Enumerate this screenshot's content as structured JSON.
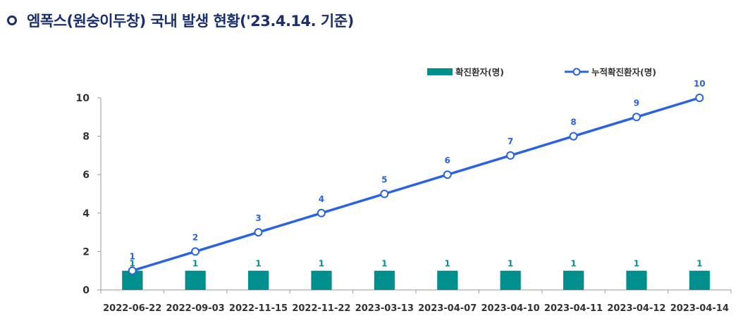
{
  "header": {
    "title": "엠폭스(원숭이두창) 국내 발생 현황('23.4.14. 기준)"
  },
  "colors": {
    "bar": "#008f8c",
    "line": "#2a63e0",
    "title": "#1a2f6e",
    "bar_label": "#009090",
    "line_label": "#2a63e0"
  },
  "chart_data": {
    "type": "bar",
    "categories": [
      "2022-06-22",
      "2022-09-03",
      "2022-11-15",
      "2022-11-22",
      "2023-03-13",
      "2023-04-07",
      "2023-04-10",
      "2023-04-11",
      "2023-04-12",
      "2023-04-14"
    ],
    "series": [
      {
        "name": "확진환자(명)",
        "type": "bar",
        "values": [
          1,
          1,
          1,
          1,
          1,
          1,
          1,
          1,
          1,
          1
        ]
      },
      {
        "name": "누적확진환자(명)",
        "type": "line",
        "values": [
          1,
          2,
          3,
          4,
          5,
          6,
          7,
          8,
          9,
          10
        ]
      }
    ],
    "yticks": [
      0,
      2,
      4,
      6,
      8,
      10
    ],
    "ylim": [
      0,
      10
    ],
    "legend_position": "top-right",
    "grid": false
  }
}
